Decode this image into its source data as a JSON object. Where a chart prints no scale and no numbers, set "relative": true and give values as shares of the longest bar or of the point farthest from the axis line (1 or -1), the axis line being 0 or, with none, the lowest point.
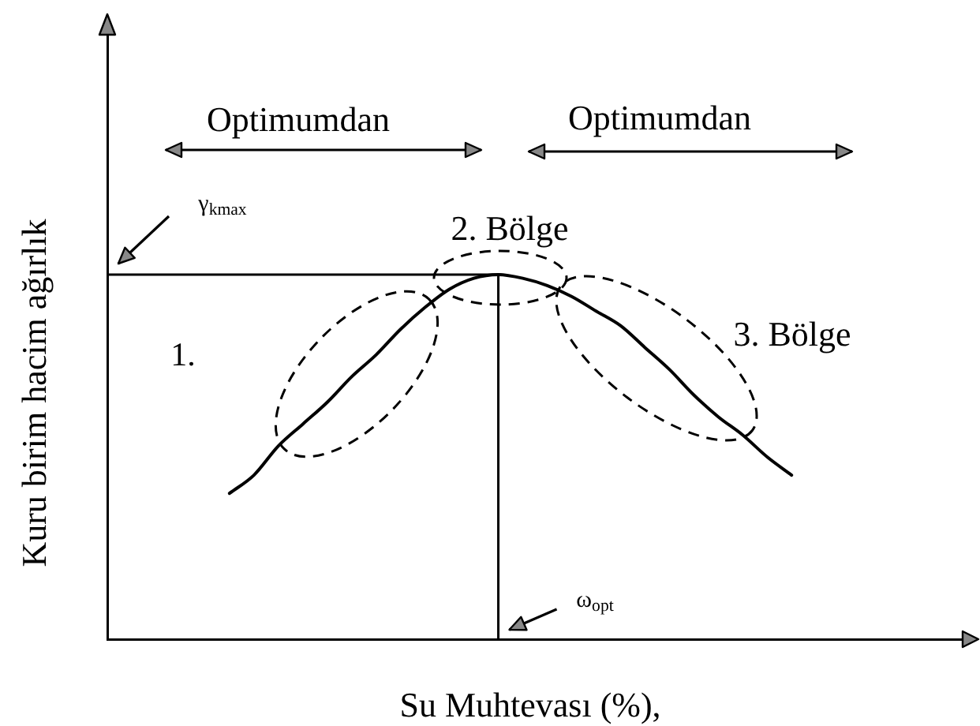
{
  "chart_data": {
    "type": "line",
    "xlabel": "Su Muhtevası (%),",
    "ylabel": "Kuru birim hacim ağırlık",
    "categories": [
      null,
      null,
      null,
      null,
      null,
      null,
      null,
      null,
      null,
      null,
      null,
      null,
      null,
      null,
      null,
      null,
      null,
      null,
      null,
      null,
      null,
      null,
      null,
      null,
      null,
      null,
      null,
      null,
      null,
      null,
      null,
      null,
      null,
      null,
      null,
      null
    ],
    "series": [
      {
        "color": "#000000",
        "values": [
          null,
          null,
          null,
          null,
          null,
          0.4,
          0.45,
          0.53,
          0.59,
          0.65,
          0.72,
          0.78,
          0.85,
          0.91,
          0.96,
          0.99,
          1,
          0.99,
          0.97,
          0.94,
          0.9,
          0.86,
          0.8,
          0.74,
          0.67,
          0.61,
          0.56,
          0.5,
          0.45,
          null,
          null,
          null,
          null,
          null,
          null,
          null
        ]
      }
    ],
    "relative": true,
    "ref_lines": [
      {
        "axis": "y",
        "value": 1,
        "label": "γ$_{kmax}$",
        "color": "#000000"
      }
    ],
    "annotations": [
      "Optimumdan",
      "Optimumdan",
      "1.",
      "2. Bölge",
      "3. Bölge",
      "ω$_{opt}$"
    ],
    "marker": "none",
    "line_style": "solid"
  }
}
